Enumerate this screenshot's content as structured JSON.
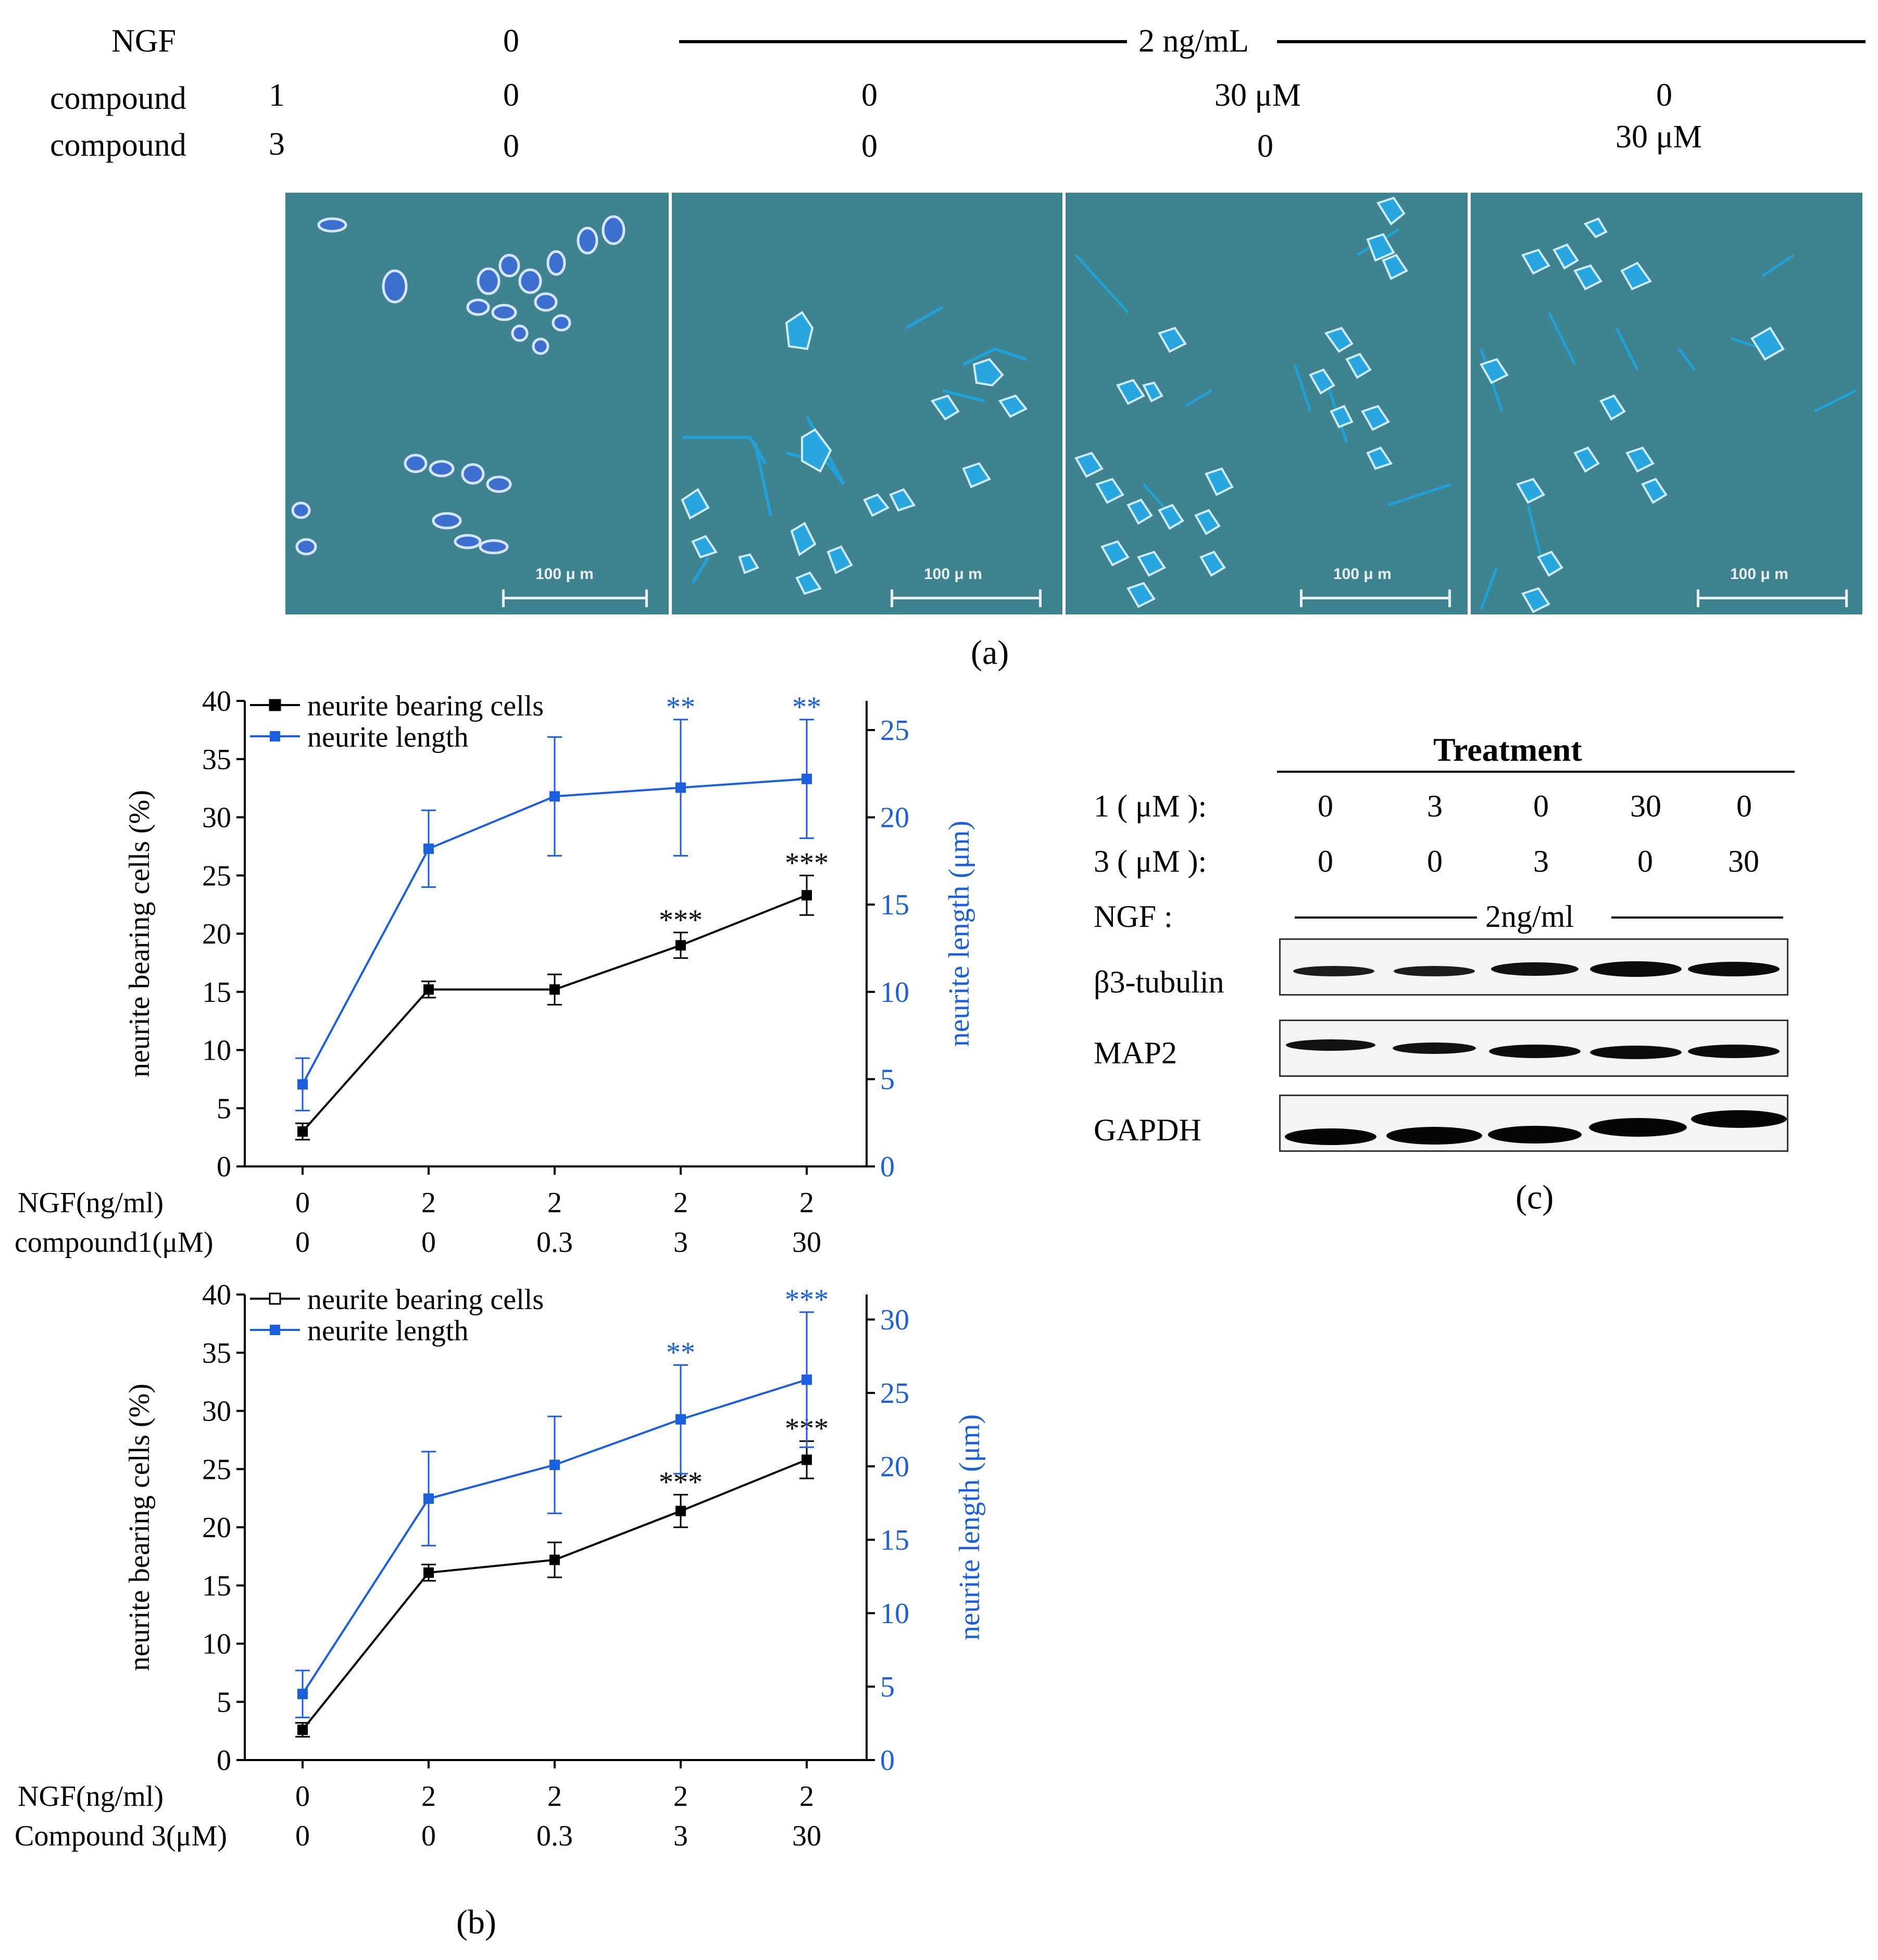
{
  "panel_a": {
    "row_labels": [
      "NGF",
      "compound",
      "compound"
    ],
    "row_numbers": [
      "",
      "1",
      "3"
    ],
    "ngf_values": [
      "0",
      "2 ng/mL"
    ],
    "compound1_values": [
      "0",
      "0",
      "30  μM",
      "0"
    ],
    "compound3_values": [
      "0",
      "0",
      "0",
      "30  μM"
    ],
    "scale_bar": "100 μ m",
    "caption": "(a)"
  },
  "panel_b": {
    "caption": "(b)",
    "legend_bearing": "neurite bearing cells",
    "legend_length": "neurite length",
    "ngf_label": "NGF(ng/ml)",
    "top_compound_label": "compound1(μM)",
    "bottom_compound_label": "Compound 3(μM)",
    "ylabel_left": "neurite bearing cells (%)",
    "ylabel_right": "neurite length (μm)"
  },
  "panel_c": {
    "caption": "(c)",
    "header": "Treatment",
    "row1_label": "1 ( μM ):",
    "row2_label": "3 ( μM ):",
    "ngf_label": "NGF :",
    "ngf_value": "2ng/ml",
    "row1_values": [
      "0",
      "3",
      "0",
      "30",
      "0"
    ],
    "row2_values": [
      "0",
      "0",
      "3",
      "0",
      "30"
    ],
    "bands": [
      "β3-tubulin",
      "MAP2",
      "GAPDH"
    ]
  },
  "colors": {
    "blue": "#1a5fe0",
    "black": "#000000",
    "micro_bg": "#3f8390"
  },
  "chart_data": [
    {
      "type": "line",
      "categories": [
        "0",
        "0",
        "0.3",
        "3",
        "30"
      ],
      "ngf": [
        "0",
        "2",
        "2",
        "2",
        "2"
      ],
      "compound_label": "compound1(μM)",
      "xlabel": "",
      "ylabel_left": "neurite bearing cells (%)",
      "ylabel_right": "neurite length (μm)",
      "ylim_left": [
        0,
        40
      ],
      "ylim_right": [
        0,
        26.67
      ],
      "yticks_left": [
        "0",
        "5",
        "10",
        "15",
        "20",
        "25",
        "30",
        "35",
        "40"
      ],
      "yticks_right": [
        "0",
        "5",
        "10",
        "15",
        "20",
        "25"
      ],
      "legend": "top-left",
      "series": [
        {
          "name": "neurite bearing cells",
          "axis": "left",
          "color": "#000000",
          "values": [
            3,
            15.2,
            15.2,
            19,
            23.3
          ],
          "errors": [
            0.7,
            0.7,
            1.3,
            1.1,
            1.7
          ],
          "stars": [
            "",
            "",
            "",
            "***",
            "***"
          ]
        },
        {
          "name": "neurite length",
          "axis": "right",
          "color": "#1a5fe0",
          "values": [
            4.7,
            18.2,
            21.2,
            21.7,
            22.2
          ],
          "errors": [
            1.5,
            2.2,
            3.4,
            3.9,
            3.4
          ],
          "stars": [
            "",
            "",
            "",
            "**",
            "**"
          ]
        }
      ]
    },
    {
      "type": "line",
      "categories": [
        "0",
        "0",
        "0.3",
        "3",
        "30"
      ],
      "ngf": [
        "0",
        "2",
        "2",
        "2",
        "2"
      ],
      "compound_label": "Compound 3(μM)",
      "xlabel": "",
      "ylabel_left": "neurite bearing cells (%)",
      "ylabel_right": "neurite length (μm)",
      "ylim_left": [
        0,
        40
      ],
      "ylim_right": [
        0,
        31.7
      ],
      "yticks_left": [
        "0",
        "5",
        "10",
        "15",
        "20",
        "25",
        "30",
        "35",
        "40"
      ],
      "yticks_right": [
        "0",
        "5",
        "10",
        "15",
        "20",
        "25",
        "30"
      ],
      "legend": "top-left",
      "series": [
        {
          "name": "neurite bearing cells",
          "axis": "left",
          "color": "#000000",
          "values": [
            2.6,
            16.1,
            17.2,
            21.4,
            25.8
          ],
          "errors": [
            0.6,
            0.7,
            1.5,
            1.4,
            1.6
          ],
          "stars": [
            "",
            "",
            "",
            "***",
            "***"
          ]
        },
        {
          "name": "neurite length",
          "axis": "right",
          "color": "#1a5fe0",
          "values": [
            4.5,
            17.8,
            20.1,
            23.2,
            25.9
          ],
          "errors": [
            1.6,
            3.2,
            3.3,
            3.7,
            4.6
          ],
          "stars": [
            "",
            "",
            "",
            "**",
            "***"
          ]
        }
      ]
    }
  ]
}
